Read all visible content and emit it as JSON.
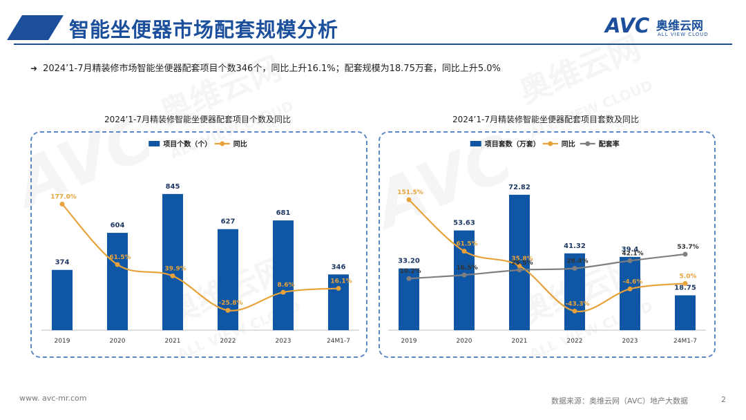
{
  "header": {
    "title": "智能坐便器市场配套规模分析"
  },
  "brand": {
    "logo_text": "AVC",
    "logo_cn": "奥维云网",
    "logo_en": "ALL VIEW CLOUD"
  },
  "headline": {
    "text": "2024’1-7月精装修市场智能坐便器配套项目个数346个，同比上升16.1%；配套规模为18.75万套，同比上升5.0%"
  },
  "watermark": {
    "cn": "奥维云网",
    "en": "ALL VIEW CLOUD",
    "mark": "AVC"
  },
  "footer": {
    "url": "www. avc-mr.com",
    "source": "数据来源：奥维云网（AVC）地产大数据",
    "page": "2"
  },
  "colors": {
    "bar": "#0f57a5",
    "yoy_line": "#e8a23a",
    "rate_line": "#7f7f7f",
    "title": "#1b4f9c",
    "box_border": "#5b86c5"
  },
  "chart_data": [
    {
      "type": "bar",
      "title": "2024’1-7月精装修智能坐便器配套项目个数及同比",
      "categories": [
        "2019",
        "2020",
        "2021",
        "2022",
        "2023",
        "24M1-7"
      ],
      "series": [
        {
          "name": "项目个数（个）",
          "type": "bar",
          "values": [
            374,
            604,
            845,
            627,
            681,
            346
          ],
          "labels": [
            "374",
            "604",
            "845",
            "627",
            "681",
            "346"
          ]
        },
        {
          "name": "同比",
          "type": "line",
          "values": [
            177.0,
            61.5,
            39.9,
            -25.8,
            8.6,
            16.1
          ],
          "labels": [
            "177.0%",
            "61.5%",
            "39.9%",
            "-25.8%",
            "8.6%",
            "16.1%"
          ]
        }
      ],
      "bar_ylim": [
        0,
        900
      ],
      "line_ylim": [
        -40,
        200
      ],
      "legend_position": "top-center",
      "grid": false
    },
    {
      "type": "bar",
      "title": "2024’1-7月精装修智能坐便器配套项目套数及同比",
      "categories": [
        "2019",
        "2020",
        "2021",
        "2022",
        "2023",
        "24M1-7"
      ],
      "series": [
        {
          "name": "项目套数（万套）",
          "type": "bar",
          "values": [
            33.2,
            53.63,
            72.82,
            41.32,
            39.4,
            18.75
          ],
          "labels": [
            "33.20",
            "53.63",
            "72.82",
            "41.32",
            "39.4",
            "18.75"
          ]
        },
        {
          "name": "同比",
          "type": "line",
          "values": [
            151.5,
            61.5,
            35.8,
            -43.3,
            -4.6,
            5.0
          ],
          "labels": [
            "151.5%",
            "61.5%",
            "35.8%",
            "-43.3%",
            "-4.6%",
            "5.0%"
          ]
        },
        {
          "name": "配套率",
          "type": "line",
          "values": [
            10.2,
            16.5,
            25.5,
            28.4,
            42.1,
            53.7
          ],
          "labels": [
            "10.2%",
            "16.5%",
            "25.5%",
            "28.4%",
            "42.1%",
            "53.7%"
          ]
        }
      ],
      "bar_ylim": [
        0,
        78
      ],
      "line_ylim": [
        -55,
        165
      ],
      "rate_ylim": [
        -60,
        165
      ],
      "legend_position": "top-center",
      "grid": false
    }
  ]
}
